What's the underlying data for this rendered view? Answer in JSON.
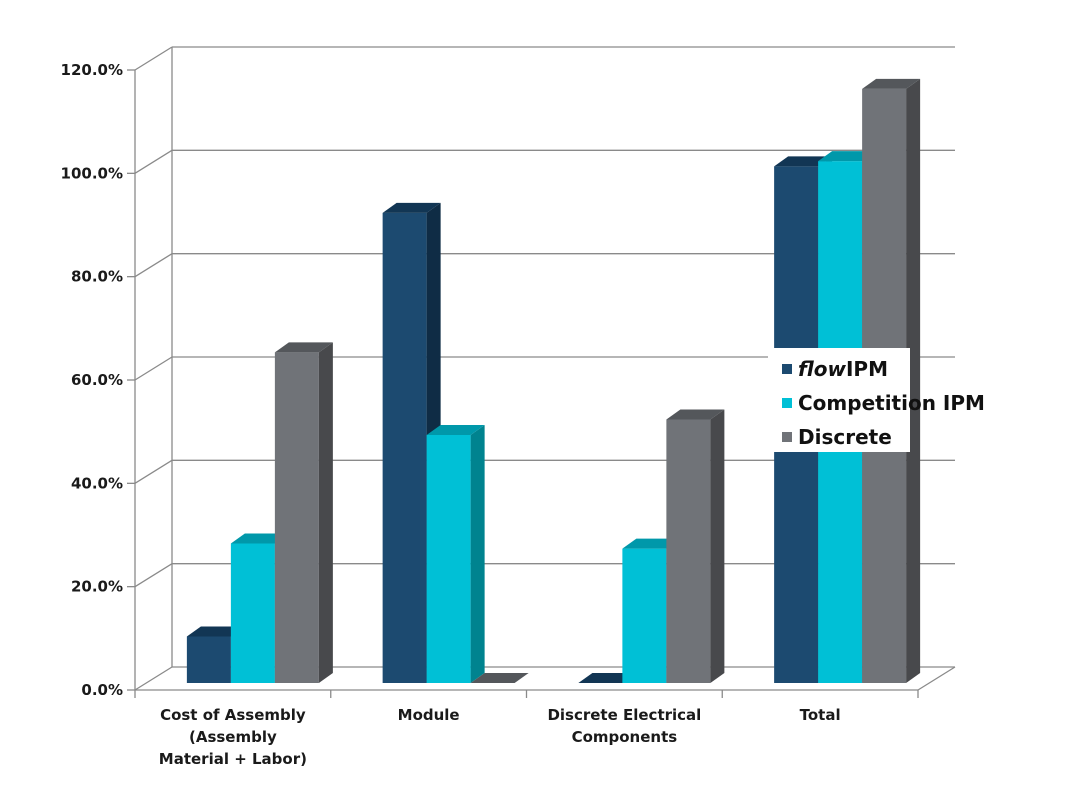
{
  "chart_data": {
    "type": "bar",
    "title": "",
    "xlabel": "",
    "ylabel": "",
    "ylim": [
      0,
      1.2
    ],
    "yticks": [
      "0.0%",
      "20.0%",
      "40.0%",
      "60.0%",
      "80.0%",
      "100.0%",
      "120.0%"
    ],
    "categories": [
      [
        "Cost of Assembly",
        "(Assembly",
        "Material + Labor)"
      ],
      [
        "Module"
      ],
      [
        "Discrete Electrical",
        "Components"
      ],
      [
        "Total"
      ]
    ],
    "series": [
      {
        "name": "IPM",
        "name_prefix": "flow",
        "color": "#1c4a70",
        "top": "#123654",
        "side": "#0f2c45",
        "values": [
          0.09,
          0.91,
          0.0,
          1.0
        ]
      },
      {
        "name": "Competition IPM",
        "color": "#00c0d6",
        "top": "#0098aa",
        "side": "#00838f",
        "values": [
          0.27,
          0.48,
          0.26,
          1.01
        ]
      },
      {
        "name": "Discrete",
        "color": "#707378",
        "top": "#54575b",
        "side": "#48494c",
        "values": [
          0.64,
          0.0,
          0.51,
          1.15
        ]
      }
    ],
    "grid": true,
    "legend": "right",
    "three_d": true
  }
}
